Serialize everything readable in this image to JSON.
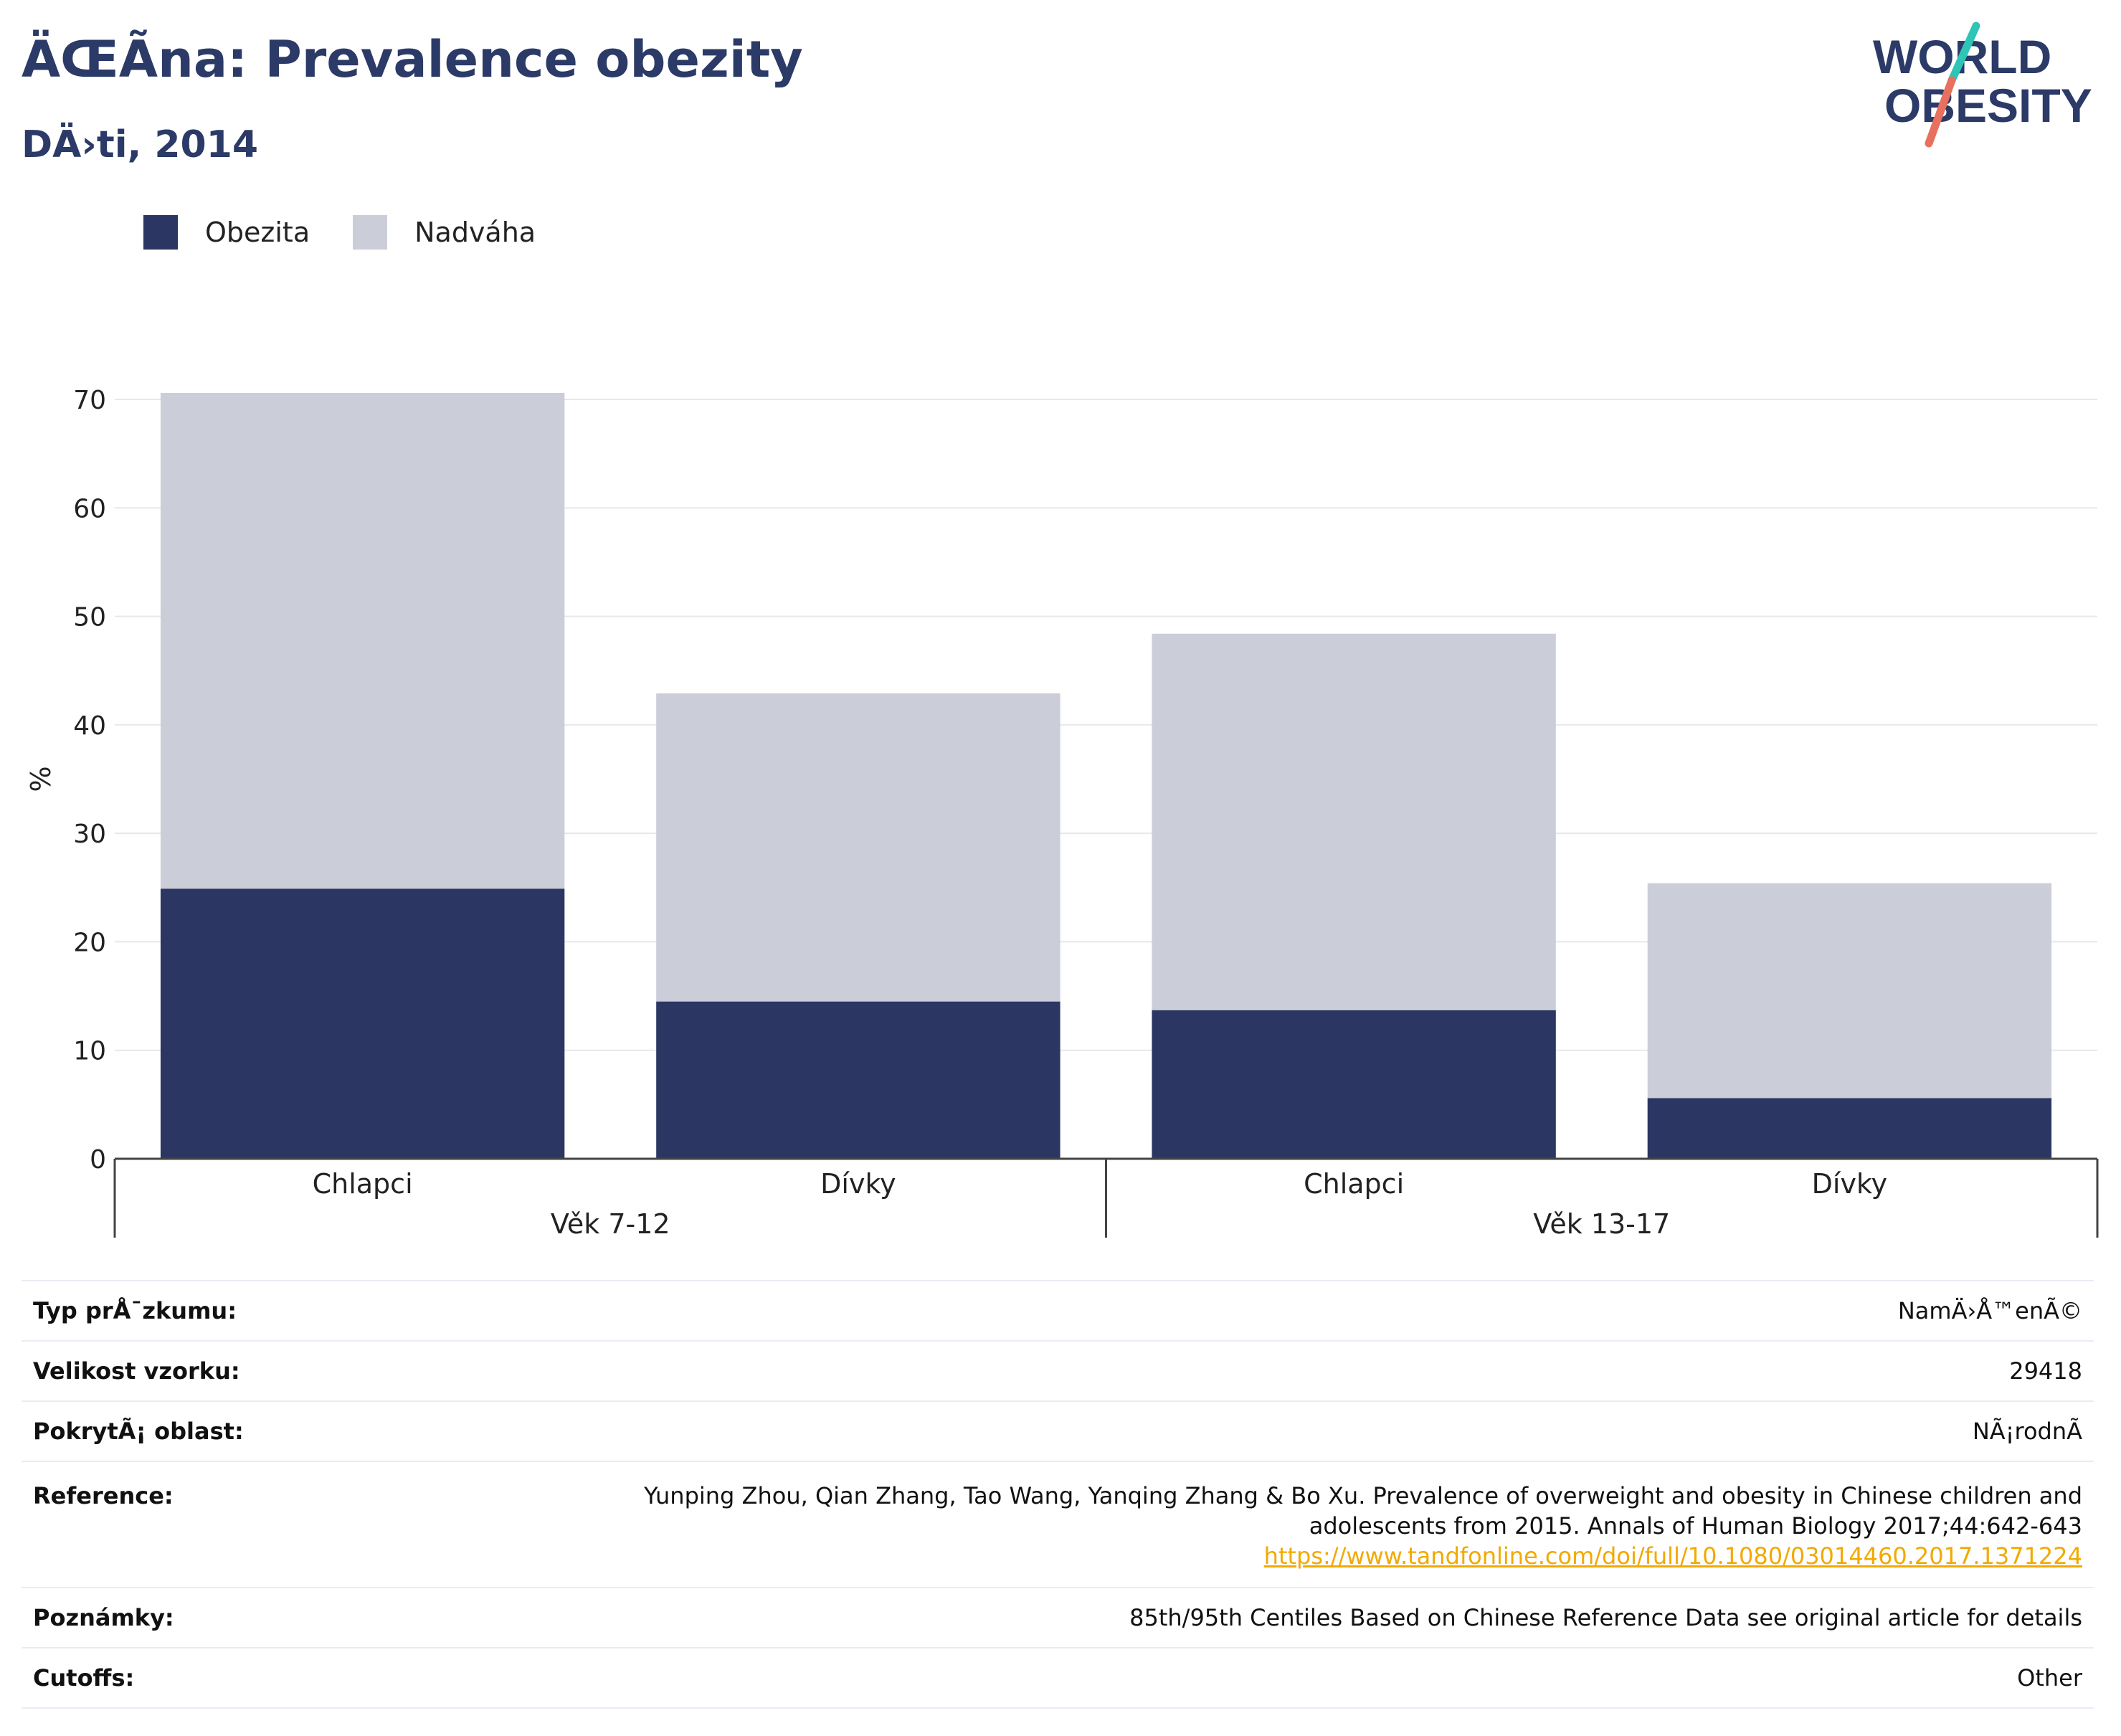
{
  "header": {
    "title": "ÄŒÃ­na: Prevalence obezity",
    "subtitle": "DÄ›ti, 2014"
  },
  "logo": {
    "line1": "WORLD",
    "line2": "OBESITY",
    "colors": {
      "text": "#2b3a67",
      "slash_top": "#2ec4b6",
      "slash_bottom": "#e8705f"
    }
  },
  "legend": [
    {
      "name": "Obezita",
      "color": "#2b3663"
    },
    {
      "name": "Nadváha",
      "color": "#cbcdd8"
    }
  ],
  "chart_data": {
    "type": "bar",
    "stacked": true,
    "categories": [
      "Chlapci",
      "Dívky",
      "Chlapci",
      "Dívky"
    ],
    "groups": [
      {
        "label": "Věk 7-12",
        "categories": [
          0,
          1
        ]
      },
      {
        "label": "Věk 13-17",
        "categories": [
          2,
          3
        ]
      }
    ],
    "series": [
      {
        "name": "Obezita",
        "color": "#2b3663",
        "values": [
          24.9,
          14.5,
          13.7,
          5.6
        ]
      },
      {
        "name": "Nadváha",
        "color": "#cbcdd8",
        "values": [
          45.7,
          28.4,
          34.7,
          19.8
        ]
      }
    ],
    "ylabel": "%",
    "ylim": [
      0,
      70
    ],
    "yticks": [
      0,
      10,
      20,
      30,
      40,
      50,
      60,
      70
    ],
    "grid": true,
    "legend_position": "top-left"
  },
  "info": {
    "study_type": {
      "label": "Typ prÅ¯zkumu:",
      "value": "NamÄ›Å™enÃ©"
    },
    "sample_size": {
      "label": "Velikost vzorku:",
      "value": "29418"
    },
    "coverage": {
      "label": "PokrytÃ¡ oblast:",
      "value": "NÃ¡rodnÃ"
    },
    "reference": {
      "label": "Reference:",
      "line1": "Yunping Zhou, Qian Zhang, Tao Wang, Yanqing Zhang & Bo Xu. Prevalence of overweight and obesity in Chinese children and",
      "line2": "adolescents from 2015. Annals of Human Biology 2017;44:642-643",
      "link": "https://www.tandfonline.com/doi/full/10.1080/03014460.2017.1371224"
    },
    "notes": {
      "label": "Poznámky:",
      "value": "85th/95th Centiles Based on Chinese Reference Data see original article for details"
    },
    "cutoffs": {
      "label": "Cutoffs:",
      "value": "Other"
    }
  }
}
